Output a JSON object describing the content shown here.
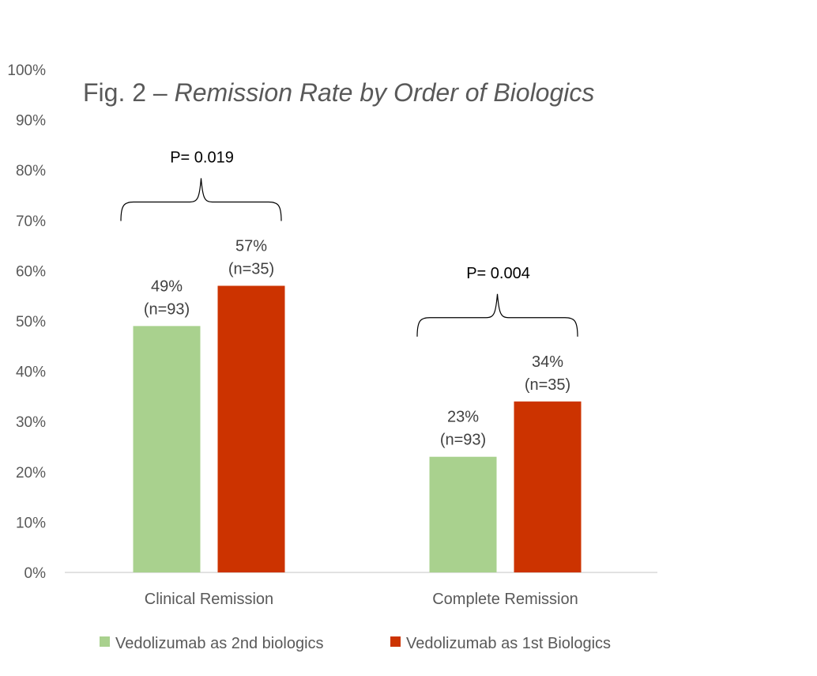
{
  "chart_data": {
    "type": "bar",
    "title_prefix": "Fig. 2 – ",
    "title_italic": "Remission Rate by Order of Biologics",
    "categories": [
      "Clinical Remission",
      "Complete Remission"
    ],
    "series": [
      {
        "name": "Vedolizumab as 2nd biologics",
        "color": "#a9d18e",
        "values": [
          0.49,
          0.23
        ],
        "labels": [
          "49%",
          "23%"
        ],
        "n_labels": [
          "(n=93)",
          "(n=93)"
        ]
      },
      {
        "name": "Vedolizumab as 1st Biologics",
        "color": "#cc3300",
        "values": [
          0.57,
          0.34
        ],
        "labels": [
          "57%",
          "34%"
        ],
        "n_labels": [
          "(n=35)",
          "(n=35)"
        ]
      }
    ],
    "y_ticks": [
      "0%",
      "10%",
      "20%",
      "30%",
      "40%",
      "50%",
      "60%",
      "70%",
      "80%",
      "90%",
      "100%"
    ],
    "ylim": [
      0,
      1
    ],
    "grid": false,
    "legend_position": "bottom",
    "annotations": [
      {
        "text": "P= 0.019",
        "category_index": 0
      },
      {
        "text": "P= 0.004",
        "category_index": 1
      }
    ]
  }
}
